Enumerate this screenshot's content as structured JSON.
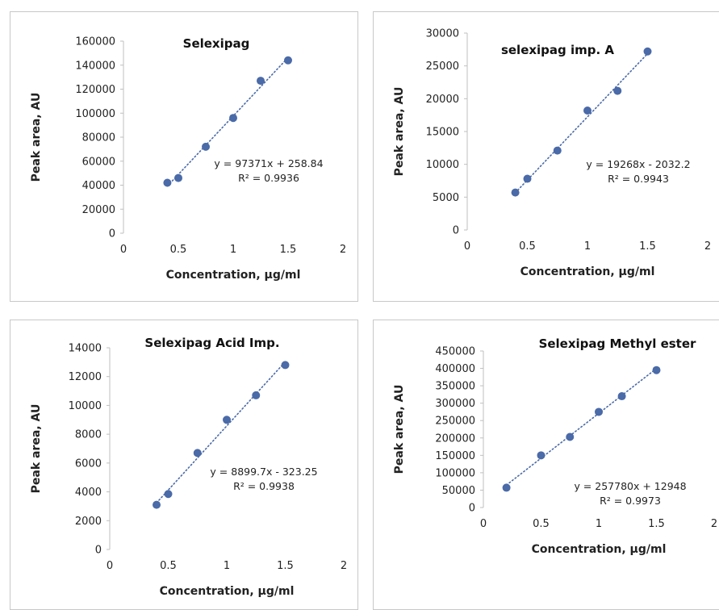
{
  "chart_data": [
    {
      "type": "scatter",
      "title": "Selexipag",
      "xlabel": "Concentration, µg/ml",
      "ylabel": "Peak area, AU",
      "xlim": [
        0,
        2
      ],
      "ylim": [
        0,
        160000
      ],
      "xticks": [
        0,
        0.5,
        1,
        1.5,
        2
      ],
      "xtick_labels": [
        "0",
        "0.5",
        "1",
        "1.5",
        "2"
      ],
      "yticks": [
        0,
        20000,
        40000,
        60000,
        80000,
        100000,
        120000,
        140000,
        160000
      ],
      "ytick_labels": [
        "0",
        "20000",
        "40000",
        "60000",
        "80000",
        "100000",
        "120000",
        "140000",
        "160000"
      ],
      "series": [
        {
          "x": [
            0.4,
            0.5,
            0.75,
            1.0,
            1.25,
            1.5
          ],
          "y": [
            42000,
            46000,
            72000,
            96000,
            127000,
            144000
          ]
        }
      ],
      "trendline": {
        "slope": 97371,
        "intercept": 258.84
      },
      "equation": "y = 97371x + 258.84",
      "r2": "R² = 0.9936",
      "grid": false,
      "point_color": "#4a6aa8"
    },
    {
      "type": "scatter",
      "title": "selexipag imp. A",
      "xlabel": "Concentration, µg/ml",
      "ylabel": "Peak area, AU",
      "xlim": [
        0,
        2
      ],
      "ylim": [
        0,
        30000
      ],
      "xticks": [
        0,
        0.5,
        1,
        1.5,
        2
      ],
      "xtick_labels": [
        "0",
        "0.5",
        "1",
        "1.5",
        "2"
      ],
      "yticks": [
        0,
        5000,
        10000,
        15000,
        20000,
        25000,
        30000
      ],
      "ytick_labels": [
        "0",
        "5000",
        "10000",
        "15000",
        "20000",
        "25000",
        "30000"
      ],
      "series": [
        {
          "x": [
            0.4,
            0.5,
            0.75,
            1.0,
            1.25,
            1.5
          ],
          "y": [
            5700,
            7800,
            12100,
            18200,
            21200,
            27200
          ]
        }
      ],
      "trendline": {
        "slope": 19268,
        "intercept": -2032.2
      },
      "equation": "y = 19268x - 2032.2",
      "r2": "R² = 0.9943",
      "grid": false,
      "point_color": "#4a6aa8"
    },
    {
      "type": "scatter",
      "title": "Selexipag Acid Imp.",
      "xlabel": "Concentration, µg/ml",
      "ylabel": "Peak area, AU",
      "xlim": [
        0,
        2
      ],
      "ylim": [
        0,
        14000
      ],
      "xticks": [
        0,
        0.5,
        1,
        1.5,
        2
      ],
      "xtick_labels": [
        "0",
        "0.5",
        "1",
        "1.5",
        "2"
      ],
      "yticks": [
        0,
        2000,
        4000,
        6000,
        8000,
        10000,
        12000,
        14000
      ],
      "ytick_labels": [
        "0",
        "2000",
        "4000",
        "6000",
        "8000",
        "10000",
        "12000",
        "14000"
      ],
      "series": [
        {
          "x": [
            0.4,
            0.5,
            0.75,
            1.0,
            1.25,
            1.5
          ],
          "y": [
            3100,
            3850,
            6700,
            9000,
            10700,
            12800
          ]
        }
      ],
      "trendline": {
        "slope": 8899.7,
        "intercept": -323.25
      },
      "equation": "y = 8899.7x - 323.25",
      "r2": "R² = 0.9938",
      "grid": false,
      "point_color": "#4a6aa8"
    },
    {
      "type": "scatter",
      "title": "Selexipag Methyl ester",
      "xlabel": "Concentration, µg/ml",
      "ylabel": "Peak area, AU",
      "xlim": [
        0,
        2
      ],
      "ylim": [
        0,
        450000
      ],
      "xticks": [
        0,
        0.5,
        1,
        1.5,
        2
      ],
      "xtick_labels": [
        "0",
        "0.5",
        "1",
        "1.5",
        "2"
      ],
      "yticks": [
        0,
        50000,
        100000,
        150000,
        200000,
        250000,
        300000,
        350000,
        400000,
        450000
      ],
      "ytick_labels": [
        "0",
        "50000",
        "100000",
        "150000",
        "200000",
        "250000",
        "300000",
        "350000",
        "400000",
        "450000"
      ],
      "series": [
        {
          "x": [
            0.2,
            0.5,
            0.75,
            1.0,
            1.2,
            1.5
          ],
          "y": [
            57000,
            150000,
            203000,
            275000,
            320000,
            395000
          ]
        }
      ],
      "trendline": {
        "slope": 257780,
        "intercept": 12948
      },
      "equation": "y = 257780x + 12948",
      "r2": "R² = 0.9973",
      "grid": false,
      "point_color": "#4a6aa8"
    }
  ]
}
